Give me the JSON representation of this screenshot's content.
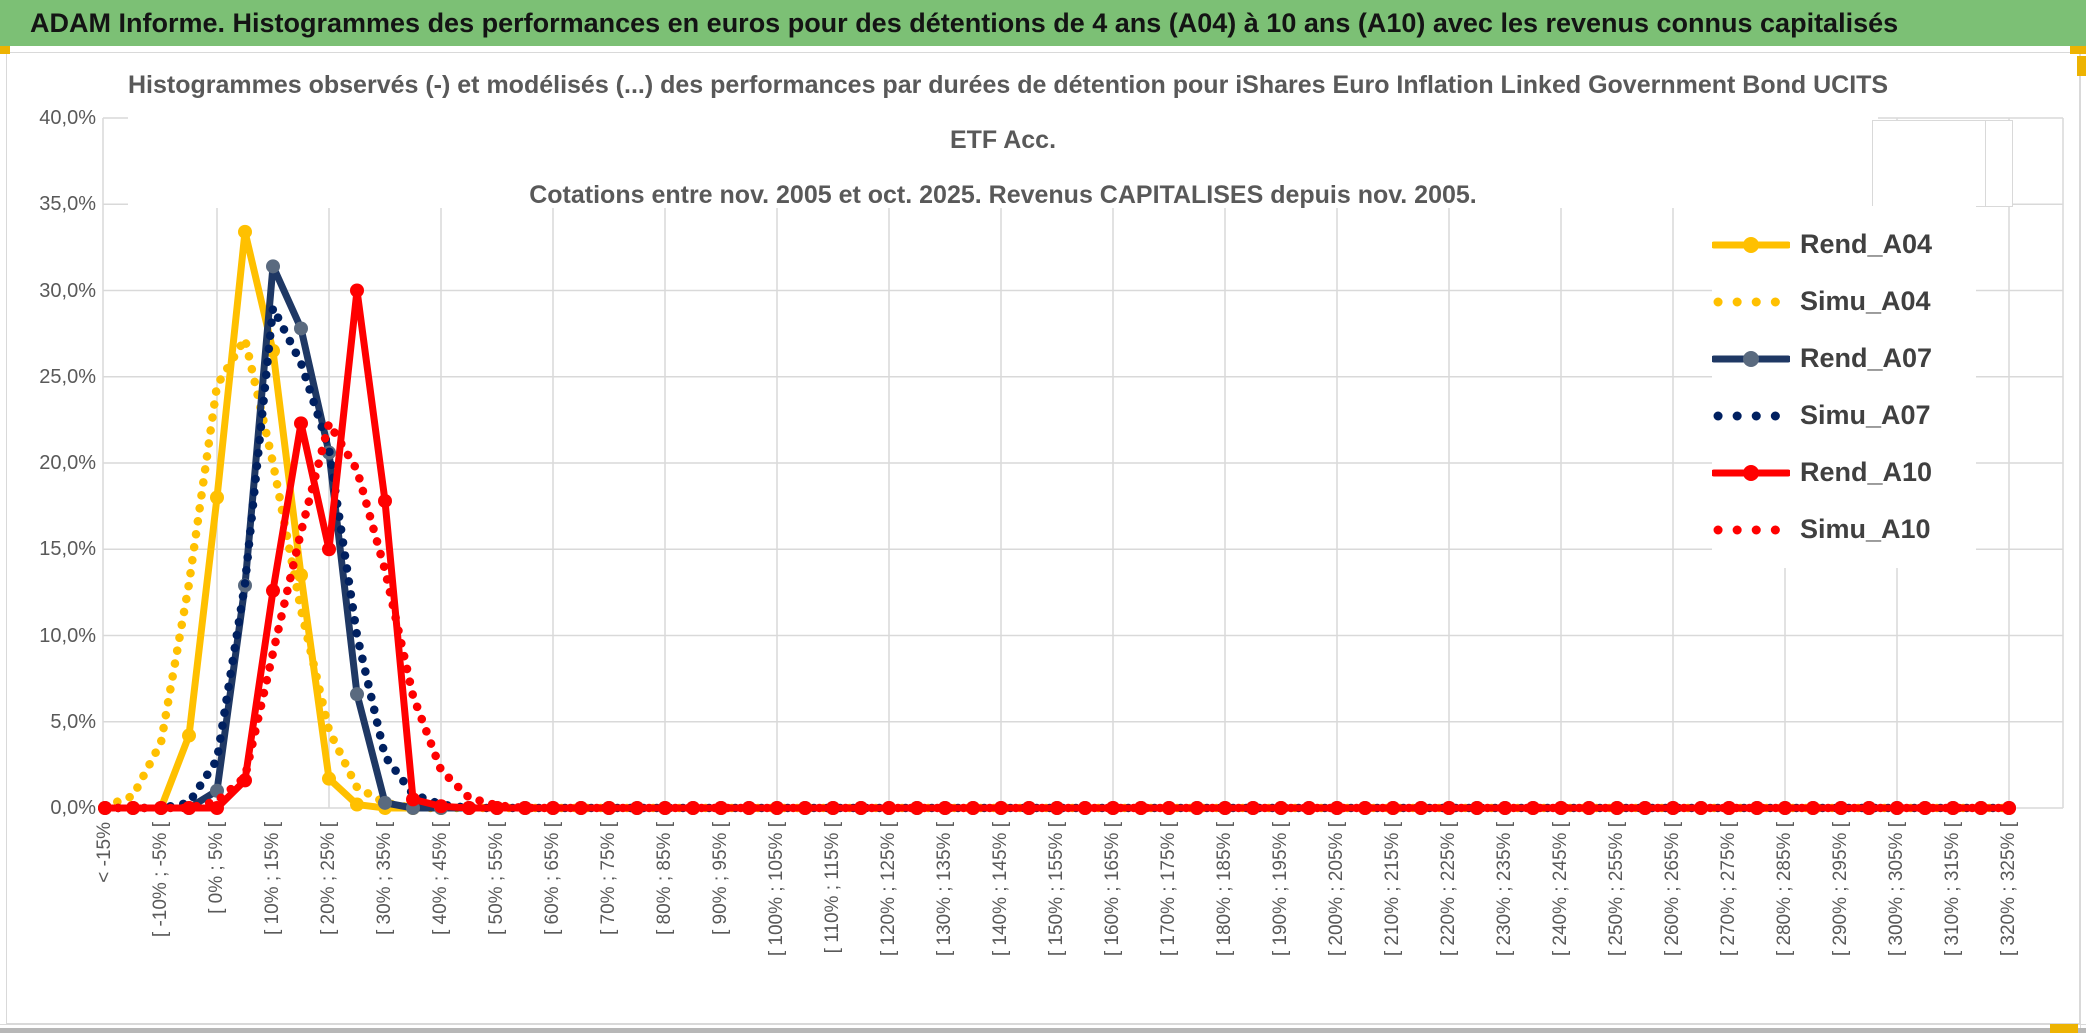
{
  "banner": {
    "text": "ADAM Informe. Histogrammes des performances en euros pour des détentions de 4 ans (A04) à 10 ans (A10) avec les revenus connus capitalisés"
  },
  "chart_data": {
    "type": "line",
    "title_line1": "Histogrammes observés (-) et modélisés (...) des performances par durées de détention pour iShares Euro Inflation Linked Government Bond UCITS",
    "title_line2": "ETF Acc.",
    "title_line3": "Cotations entre nov. 2005 et oct. 2025. Revenus CAPITALISES depuis nov. 2005.",
    "ylabel": "",
    "xlabel": "",
    "ylim": [
      0,
      40
    ],
    "y_tick_labels": [
      "0,0%",
      "5,0%",
      "10,0%",
      "15,0%",
      "20,0%",
      "25,0%",
      "30,0%",
      "35,0%",
      "40,0%"
    ],
    "n_bins": 69,
    "bin_width_pct": 5,
    "grid": true,
    "legend_position": "right",
    "x_labels_visible": [
      "< -15%",
      "[ -10% ; -5% [",
      "[ 0% ; 5% [",
      "[ 10% ; 15% [",
      "[ 20% ; 25% [",
      "[ 30% ; 35% [",
      "[ 40% ; 45% [",
      "[ 50% ; 55% [",
      "[ 60% ; 65% [",
      "[ 70% ; 75% [",
      "[ 80% ; 85% [",
      "[ 90% ; 95% [",
      "[ 100% ; 105% [",
      "[ 110% ; 115% [",
      "[ 120% ; 125% [",
      "[ 130% ; 135% [",
      "[ 140% ; 145% [",
      "[ 150% ; 155% [",
      "[ 160% ; 165% [",
      "[ 170% ; 175% [",
      "[ 180% ; 185% [",
      "[ 190% ; 195% [",
      "[ 200% ; 205% [",
      "[ 210% ; 215% [",
      "[ 220% ; 225% [",
      "[ 230% ; 235% [",
      "[ 240% ; 245% [",
      "[ 250% ; 255% [",
      "[ 260% ; 265% [",
      "[ 270% ; 275% [",
      "[ 280% ; 285% [",
      "[ 290% ; 295% [",
      "[ 300% ; 305% [",
      "[ 310% ; 315% [",
      "[ 320% ; 325% ["
    ],
    "series": [
      {
        "name": "Rend_A04",
        "style": "solid",
        "color": "#FFC000",
        "marker_color": "#FFC000",
        "values_pct": [
          0,
          0,
          0,
          4.2,
          18,
          33.4,
          26.5,
          13.5,
          1.7,
          0.2,
          0,
          0,
          0,
          0,
          0
        ]
      },
      {
        "name": "Simu_A04",
        "style": "dotted",
        "color": "#FFC000",
        "values_pct": [
          0.1,
          0.7,
          3.8,
          13,
          24.5,
          27.2,
          20,
          11.5,
          4.5,
          1.2,
          0.3,
          0,
          0,
          0,
          0
        ]
      },
      {
        "name": "Rend_A07",
        "style": "solid",
        "color": "#1F3864",
        "marker_color": "#5a6a7f",
        "values_pct": [
          0,
          0,
          0,
          0,
          1,
          12.9,
          31.4,
          27.8,
          20.6,
          6.6,
          0.3,
          0,
          0,
          0,
          0
        ]
      },
      {
        "name": "Simu_A07",
        "style": "dotted",
        "color": "#002060",
        "values_pct": [
          0,
          0,
          0,
          0.3,
          2.8,
          13,
          29,
          25.8,
          20.8,
          10,
          3,
          0.8,
          0.2,
          0,
          0
        ]
      },
      {
        "name": "Rend_A10",
        "style": "solid",
        "color": "#FF0000",
        "marker_color": "#FF0000",
        "values_pct": [
          0,
          0,
          0,
          0,
          0,
          1.6,
          12.6,
          22.3,
          15,
          30,
          17.8,
          0.5,
          0.1,
          0,
          0
        ]
      },
      {
        "name": "Simu_A10",
        "style": "dotted",
        "color": "#FF0000",
        "values_pct": [
          0,
          0,
          0,
          0,
          0.4,
          1.8,
          9,
          16,
          22.3,
          19.6,
          13.8,
          6.5,
          2.2,
          0.6,
          0.15
        ]
      }
    ]
  },
  "colors": {
    "banner_green": "#7cc075",
    "grid_gray": "#d9d9d9",
    "label_gray": "#595959",
    "legend_text": "#404040",
    "selection_yellow": "#edb302"
  }
}
